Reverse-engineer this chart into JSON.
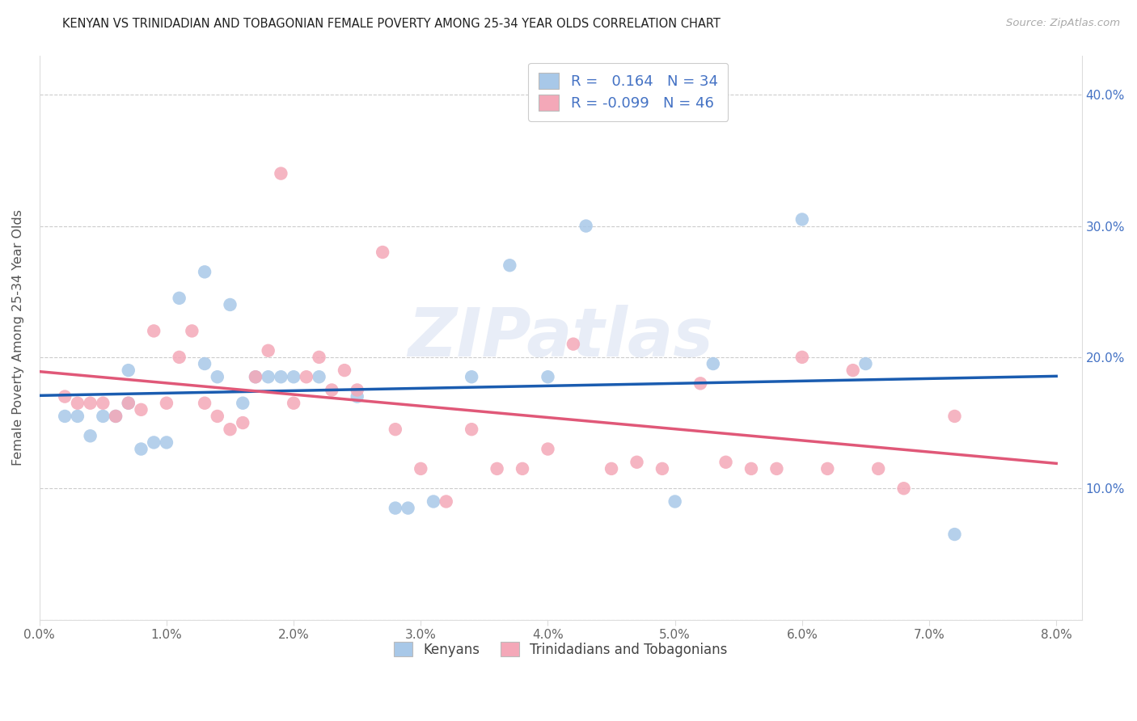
{
  "title": "KENYAN VS TRINIDADIAN AND TOBAGONIAN FEMALE POVERTY AMONG 25-34 YEAR OLDS CORRELATION CHART",
  "source": "Source: ZipAtlas.com",
  "ylabel": "Female Poverty Among 25-34 Year Olds",
  "xlim": [
    0.0,
    0.082
  ],
  "ylim": [
    0.0,
    0.43
  ],
  "xticks": [
    0.0,
    0.01,
    0.02,
    0.03,
    0.04,
    0.05,
    0.06,
    0.07,
    0.08
  ],
  "yticks": [
    0.0,
    0.1,
    0.2,
    0.3,
    0.4
  ],
  "xticklabels": [
    "0.0%",
    "1.0%",
    "2.0%",
    "3.0%",
    "4.0%",
    "5.0%",
    "6.0%",
    "7.0%",
    "8.0%"
  ],
  "yticklabels_right": [
    "",
    "10.0%",
    "20.0%",
    "30.0%",
    "40.0%"
  ],
  "legend_label1": "Kenyans",
  "legend_label2": "Trinidadians and Tobagonians",
  "R1": 0.164,
  "N1": 34,
  "R2": -0.099,
  "N2": 46,
  "color_blue": "#a8c8e8",
  "color_pink": "#f4a8b8",
  "color_blue_line": "#1a5cb0",
  "color_pink_line": "#e05878",
  "watermark": "ZIPatlas",
  "blue_x": [
    0.002,
    0.003,
    0.004,
    0.005,
    0.006,
    0.007,
    0.007,
    0.008,
    0.009,
    0.01,
    0.011,
    0.013,
    0.013,
    0.014,
    0.015,
    0.016,
    0.017,
    0.018,
    0.019,
    0.02,
    0.022,
    0.025,
    0.028,
    0.029,
    0.031,
    0.034,
    0.037,
    0.04,
    0.043,
    0.05,
    0.053,
    0.06,
    0.065,
    0.072
  ],
  "blue_y": [
    0.155,
    0.155,
    0.14,
    0.155,
    0.155,
    0.19,
    0.165,
    0.13,
    0.135,
    0.135,
    0.245,
    0.265,
    0.195,
    0.185,
    0.24,
    0.165,
    0.185,
    0.185,
    0.185,
    0.185,
    0.185,
    0.17,
    0.085,
    0.085,
    0.09,
    0.185,
    0.27,
    0.185,
    0.3,
    0.09,
    0.195,
    0.305,
    0.195,
    0.065
  ],
  "pink_x": [
    0.002,
    0.003,
    0.004,
    0.005,
    0.006,
    0.007,
    0.008,
    0.009,
    0.01,
    0.011,
    0.012,
    0.013,
    0.014,
    0.015,
    0.016,
    0.017,
    0.018,
    0.019,
    0.02,
    0.021,
    0.022,
    0.023,
    0.024,
    0.025,
    0.027,
    0.028,
    0.03,
    0.032,
    0.034,
    0.036,
    0.038,
    0.04,
    0.042,
    0.045,
    0.047,
    0.049,
    0.052,
    0.054,
    0.056,
    0.058,
    0.06,
    0.062,
    0.064,
    0.066,
    0.068,
    0.072
  ],
  "pink_y": [
    0.17,
    0.165,
    0.165,
    0.165,
    0.155,
    0.165,
    0.16,
    0.22,
    0.165,
    0.2,
    0.22,
    0.165,
    0.155,
    0.145,
    0.15,
    0.185,
    0.205,
    0.34,
    0.165,
    0.185,
    0.2,
    0.175,
    0.19,
    0.175,
    0.28,
    0.145,
    0.115,
    0.09,
    0.145,
    0.115,
    0.115,
    0.13,
    0.21,
    0.115,
    0.12,
    0.115,
    0.18,
    0.12,
    0.115,
    0.115,
    0.2,
    0.115,
    0.19,
    0.115,
    0.1,
    0.155
  ]
}
